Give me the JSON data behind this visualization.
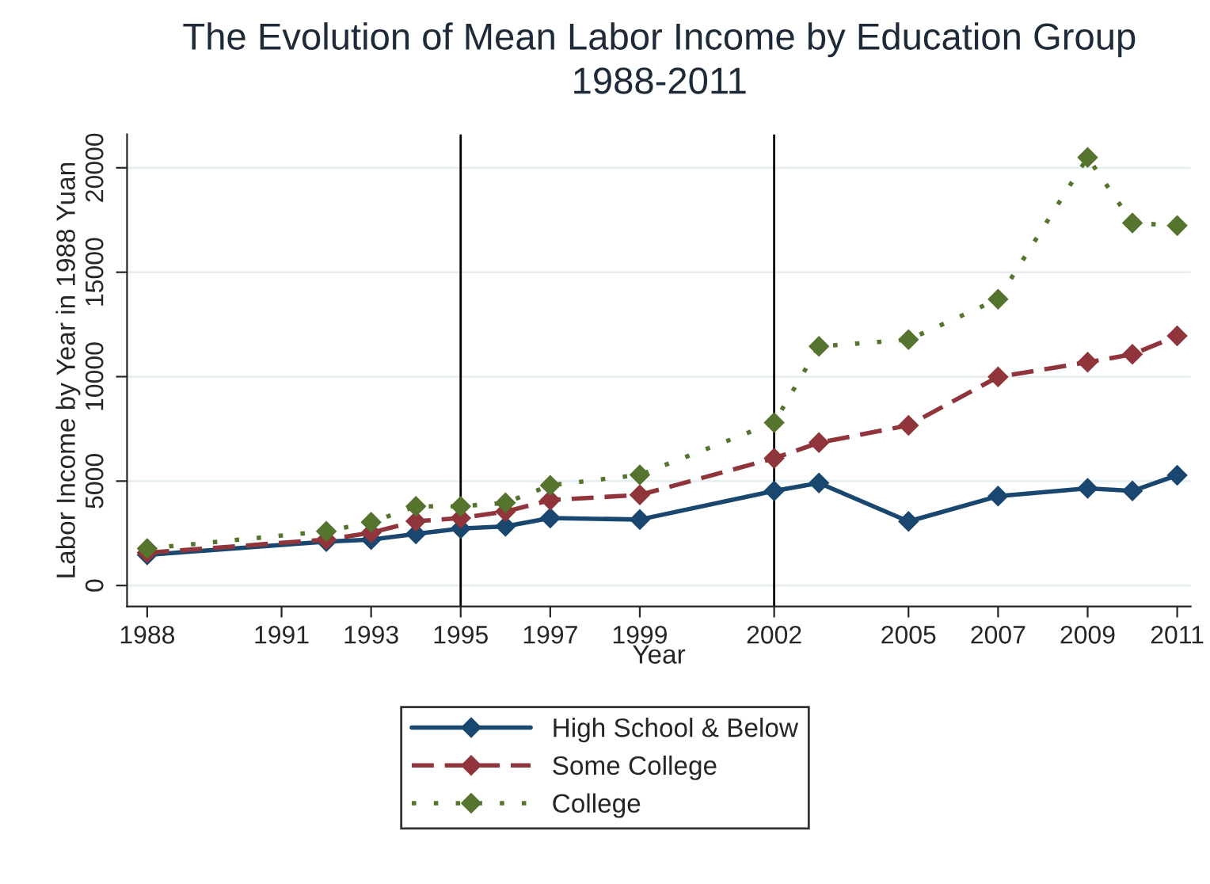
{
  "chart_data": {
    "type": "line",
    "title": "The Evolution of Mean Labor Income by Education Group",
    "subtitle": "1988-2011",
    "xlabel": "Year",
    "ylabel": "Labor Income by Year in 1988 Yuan",
    "x": [
      1988,
      1992,
      1993,
      1994,
      1995,
      1996,
      1997,
      1999,
      2002,
      2003,
      2005,
      2007,
      2009,
      2010,
      2011
    ],
    "series": [
      {
        "name": "High School & Below",
        "color": "#1a476f",
        "line_style": "solid",
        "values": [
          1470,
          2100,
          2200,
          2470,
          2730,
          2830,
          3230,
          3160,
          4530,
          4910,
          3070,
          4280,
          4650,
          4530,
          5280
        ]
      },
      {
        "name": "Some College",
        "color": "#90353b",
        "line_style": "dashed",
        "values": [
          1570,
          2200,
          2530,
          3080,
          3230,
          3540,
          4090,
          4340,
          6090,
          6840,
          7670,
          9990,
          10690,
          11070,
          11950
        ]
      },
      {
        "name": "College",
        "color": "#55752f",
        "line_style": "dotted",
        "values": [
          1770,
          2600,
          3030,
          3790,
          3790,
          3960,
          4800,
          5300,
          7800,
          11450,
          11770,
          13710,
          20500,
          17360,
          17230
        ]
      }
    ],
    "xlim": [
      1987.55,
      2011.3
    ],
    "xticks": [
      1988,
      1991,
      1993,
      1995,
      1997,
      1999,
      2002,
      2005,
      2007,
      2009,
      2011
    ],
    "ylim": [
      -1000,
      21600
    ],
    "yticks": [
      0,
      5000,
      10000,
      15000,
      20000
    ],
    "ref_lines": [
      {
        "axis": "x",
        "value": 1995,
        "color": "#000000"
      },
      {
        "axis": "x",
        "value": 2002,
        "color": "#000000"
      }
    ],
    "grid": "y",
    "legend": "bottom",
    "marker": "diamond"
  }
}
